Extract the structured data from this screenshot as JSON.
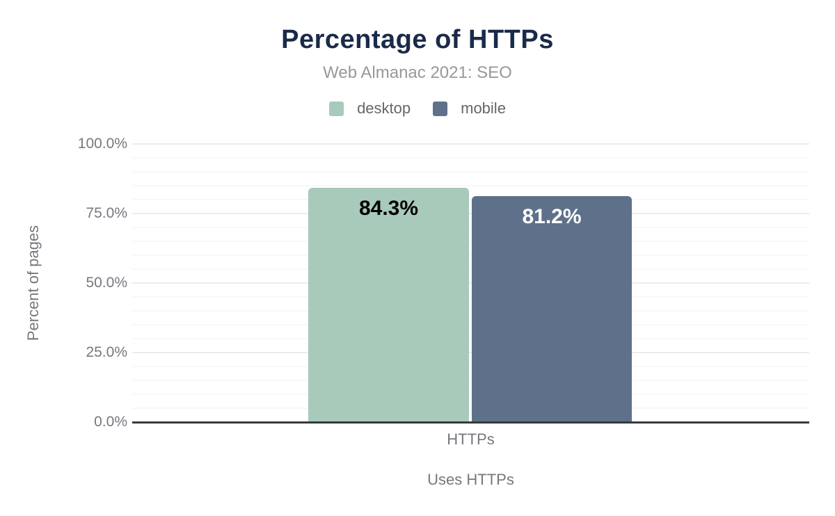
{
  "chart_data": {
    "type": "bar",
    "title": "Percentage of HTTPs",
    "subtitle": "Web Almanac 2021: SEO",
    "categories": [
      "HTTPs"
    ],
    "series": [
      {
        "name": "desktop",
        "values": [
          84.3
        ],
        "value_label": "84.3%",
        "color": "#a8cabb",
        "value_label_color": "#000000"
      },
      {
        "name": "mobile",
        "values": [
          81.2
        ],
        "value_label": "81.2%",
        "color": "#5f718a",
        "value_label_color": "#ffffff"
      }
    ],
    "xlabel": "Uses HTTPs",
    "ylabel": "Percent of pages",
    "ylim": [
      0,
      100
    ],
    "yticks": [
      0,
      25,
      50,
      75,
      100
    ],
    "ytick_labels": [
      "0.0%",
      "25.0%",
      "50.0%",
      "75.0%",
      "100.0%"
    ],
    "grid": {
      "on": true,
      "minor_step": 5,
      "major_step": 25
    },
    "legend_position": "top",
    "colors": {
      "title": "#1a2b49",
      "subtitle": "#989898",
      "legend_text": "#63666c",
      "axis_text": "#75787e",
      "axis_line": "#37393c",
      "grid_minor": "#f8f8f8",
      "grid_major": "#ececec",
      "background": "#ffffff"
    }
  }
}
